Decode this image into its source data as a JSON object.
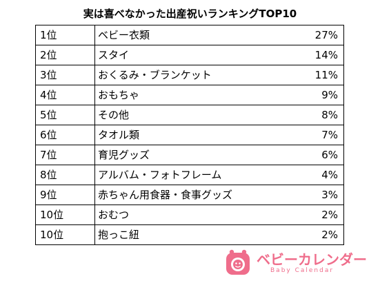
{
  "chart_data": {
    "type": "table",
    "title": "実は喜べなかった出産祝いランキングTOP10",
    "rows": [
      {
        "rank": "1位",
        "item": "ベビー衣類",
        "percent": "27%",
        "value": 27
      },
      {
        "rank": "2位",
        "item": "スタイ",
        "percent": "14%",
        "value": 14
      },
      {
        "rank": "3位",
        "item": "おくるみ・ブランケット",
        "percent": "11%",
        "value": 11
      },
      {
        "rank": "4位",
        "item": "おもちゃ",
        "percent": "9%",
        "value": 9
      },
      {
        "rank": "5位",
        "item": "その他",
        "percent": "8%",
        "value": 8
      },
      {
        "rank": "6位",
        "item": "タオル類",
        "percent": "7%",
        "value": 7
      },
      {
        "rank": "7位",
        "item": "育児グッズ",
        "percent": "6%",
        "value": 6
      },
      {
        "rank": "8位",
        "item": "アルバム・フォトフレーム",
        "percent": "4%",
        "value": 4
      },
      {
        "rank": "9位",
        "item": "赤ちゃん用食器・食事グッズ",
        "percent": "3%",
        "value": 3
      },
      {
        "rank": "10位",
        "item": "おむつ",
        "percent": "2%",
        "value": 2
      },
      {
        "rank": "10位",
        "item": "抱っこ紐",
        "percent": "2%",
        "value": 2
      }
    ]
  },
  "logo": {
    "main_text": "ベビーカレンダー",
    "sub_text": "Baby Calendar",
    "icon": "baby-calendar-logo-icon",
    "color": "#ef6d8b"
  }
}
